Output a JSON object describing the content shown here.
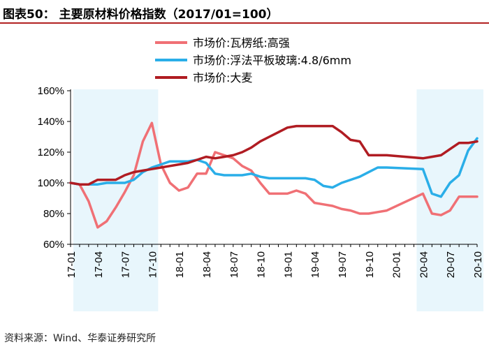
{
  "title": "图表50：   主要原材料价格指数（2017/01=100）",
  "source": "资料来源：Wind、华泰证券研究所",
  "chart_data": {
    "type": "line",
    "ylim": [
      60,
      160
    ],
    "yticks": [
      "60%",
      "80%",
      "100%",
      "120%",
      "140%",
      "160%"
    ],
    "x_tick_labels": [
      "17-01",
      "17-04",
      "17-07",
      "17-10",
      "18-01",
      "18-04",
      "18-07",
      "18-10",
      "19-01",
      "19-04",
      "19-07",
      "19-10",
      "20-01",
      "20-04",
      "20-07",
      "20-10"
    ],
    "shaded_ranges": [
      [
        "17-02",
        "17-10"
      ],
      [
        "20-04",
        "20-10"
      ]
    ],
    "legend_position": "top-right",
    "series": [
      {
        "name": "市场价:瓦楞纸:高强",
        "color": "#f07075",
        "x": [
          0,
          1,
          2,
          3,
          4,
          5,
          6,
          7,
          8,
          9,
          10,
          11,
          12,
          13,
          14,
          15,
          16,
          17,
          18,
          19,
          20,
          21,
          22,
          23,
          24,
          25,
          26,
          27,
          28,
          29,
          30,
          31,
          32,
          33,
          34,
          35,
          39,
          40,
          41,
          42,
          43,
          44,
          45
        ],
        "values": [
          100,
          99,
          88,
          71,
          75,
          84,
          94,
          105,
          127,
          139,
          112,
          100,
          95,
          97,
          106,
          106,
          120,
          118,
          116,
          111,
          108,
          100,
          93,
          93,
          93,
          95,
          93,
          87,
          86,
          85,
          83,
          82,
          80,
          80,
          81,
          82,
          93,
          80,
          79,
          82,
          91,
          91,
          91
        ]
      },
      {
        "name": "市场价:浮法平板玻璃:4.8/6mm",
        "color": "#2aaee8",
        "x": [
          0,
          1,
          2,
          3,
          4,
          5,
          6,
          7,
          8,
          9,
          10,
          11,
          12,
          13,
          14,
          15,
          16,
          17,
          18,
          19,
          20,
          21,
          22,
          23,
          24,
          25,
          26,
          27,
          28,
          29,
          30,
          31,
          32,
          33,
          34,
          35,
          39,
          40,
          41,
          42,
          43,
          44,
          45
        ],
        "values": [
          100,
          99,
          99,
          99,
          100,
          100,
          100,
          102,
          107,
          110,
          112,
          114,
          114,
          114,
          115,
          113,
          106,
          105,
          105,
          105,
          106,
          104,
          103,
          103,
          103,
          103,
          103,
          102,
          98,
          97,
          100,
          102,
          104,
          107,
          110,
          110,
          109,
          93,
          91,
          100,
          105,
          121,
          129
        ]
      },
      {
        "name": "市场价:大麦",
        "color": "#b01c22",
        "x": [
          0,
          1,
          2,
          3,
          4,
          5,
          6,
          7,
          8,
          9,
          10,
          11,
          12,
          13,
          14,
          15,
          16,
          17,
          18,
          19,
          20,
          21,
          22,
          23,
          24,
          25,
          26,
          27,
          28,
          29,
          30,
          31,
          32,
          33,
          34,
          35,
          39,
          40,
          41,
          42,
          43,
          44,
          45
        ],
        "values": [
          100,
          99,
          99,
          102,
          102,
          102,
          105,
          107,
          108,
          109,
          110,
          111,
          112,
          113,
          115,
          117,
          116,
          117,
          118,
          120,
          123,
          127,
          130,
          133,
          136,
          137,
          137,
          137,
          137,
          137,
          133,
          128,
          127,
          118,
          118,
          118,
          116,
          117,
          118,
          122,
          126,
          126,
          127
        ]
      }
    ]
  }
}
